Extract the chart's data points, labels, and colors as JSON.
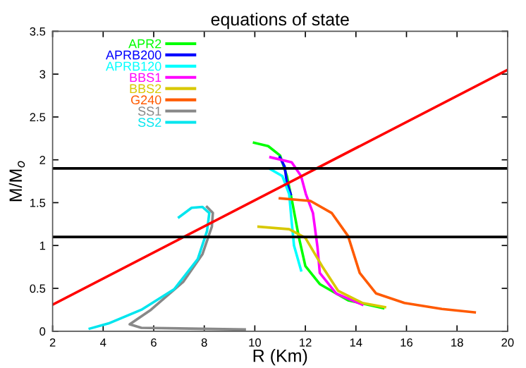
{
  "chart_data": {
    "type": "line",
    "title": "equations of state",
    "xlabel": "R (Km)",
    "ylabel": "M/M$_{o}$",
    "xlim": [
      2,
      20
    ],
    "xticks": [
      2,
      4,
      6,
      8,
      10,
      12,
      14,
      16,
      18,
      20
    ],
    "ylim": [
      0,
      3.5
    ],
    "yticks": [
      0,
      0.5,
      1,
      1.5,
      2,
      2.5,
      3,
      3.5
    ],
    "grid": false,
    "legend": "top left",
    "marker": "none",
    "line_style": "solid",
    "ref_lines": [
      {
        "axis": "y",
        "value": 1.9,
        "color": "#000000"
      },
      {
        "axis": "y",
        "value": 1.1,
        "color": "#000000"
      }
    ],
    "series": [
      {
        "name": "APR2",
        "color": "#00ff00",
        "x": [
          9.97,
          10.53,
          11.0,
          11.27,
          11.46,
          11.74,
          12.0,
          12.57,
          13.69,
          15.08
        ],
        "values": [
          2.2,
          2.16,
          2.05,
          1.81,
          1.54,
          1.1,
          0.76,
          0.55,
          0.36,
          0.27
        ]
      },
      {
        "name": "APRB200",
        "color": "#0000ff",
        "x": [
          10.99,
          11.18,
          11.27,
          11.42
        ],
        "values": [
          2.03,
          1.92,
          1.73,
          1.6
        ]
      },
      {
        "name": "APRB120",
        "color": "#00ffff",
        "x": [
          10.62,
          11.09,
          11.36,
          11.46,
          11.55,
          11.83
        ],
        "values": [
          1.89,
          1.81,
          1.6,
          1.27,
          1.0,
          0.71
        ]
      },
      {
        "name": "BBS1",
        "color": "#ff00ff",
        "x": [
          10.62,
          11.46,
          11.83,
          12.02,
          12.3,
          12.48,
          12.57,
          13.22,
          14.25
        ],
        "values": [
          2.03,
          1.97,
          1.81,
          1.6,
          1.38,
          0.98,
          0.68,
          0.44,
          0.31
        ]
      },
      {
        "name": "BBS2",
        "color": "#d8c800",
        "x": [
          10.15,
          11.36,
          12.0,
          12.66,
          13.3,
          14.25,
          15.15
        ],
        "values": [
          1.22,
          1.19,
          1.09,
          0.76,
          0.47,
          0.33,
          0.28
        ]
      },
      {
        "name": "G240",
        "color": "#ff5a00",
        "x": [
          10.99,
          12.2,
          13.04,
          13.69,
          14.15,
          14.8,
          15.92,
          17.4,
          18.7
        ],
        "values": [
          1.55,
          1.52,
          1.38,
          1.11,
          0.68,
          0.44,
          0.33,
          0.26,
          0.22
        ]
      },
      {
        "name": "SS1",
        "color": "#888888",
        "x": [
          9.6,
          5.51,
          5.05,
          5.89,
          7.18,
          7.93,
          8.3,
          8.34,
          8.11
        ],
        "values": [
          0.02,
          0.04,
          0.08,
          0.25,
          0.58,
          0.9,
          1.22,
          1.38,
          1.45
        ]
      },
      {
        "name": "SS2",
        "color": "#00e5ee",
        "x": [
          3.47,
          4.21,
          5.51,
          6.81,
          7.74,
          8.11,
          8.2,
          7.93,
          7.5,
          7.0
        ],
        "values": [
          0.03,
          0.09,
          0.25,
          0.49,
          0.84,
          1.17,
          1.38,
          1.45,
          1.44,
          1.33
        ]
      },
      {
        "color": "#ff0000",
        "x": [
          2,
          20
        ],
        "values": [
          0.31,
          3.05
        ]
      }
    ]
  }
}
